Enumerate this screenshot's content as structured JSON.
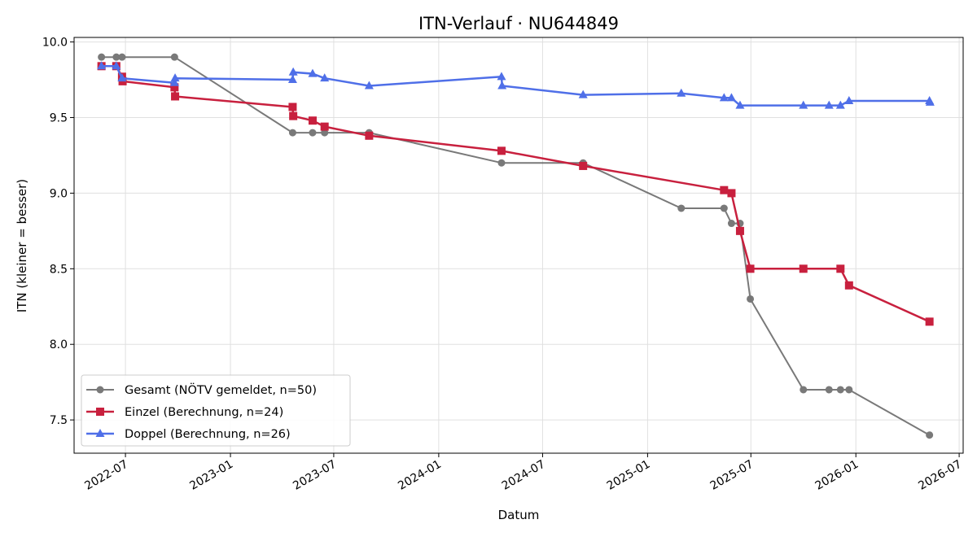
{
  "chart_data": {
    "type": "line",
    "title": "ITN-Verlauf · NU644849",
    "xlabel": "Datum",
    "ylabel": "ITN  (kleiner = besser)",
    "x_range": [
      "2022-04-02",
      "2026-07-08"
    ],
    "ylim": [
      7.28,
      10.03
    ],
    "x_ticks": [
      "2022-07-01",
      "2023-01-01",
      "2023-07-01",
      "2024-01-01",
      "2024-07-01",
      "2025-01-01",
      "2025-07-01",
      "2026-01-01",
      "2026-07-01"
    ],
    "x_tick_labels": [
      "2022-07",
      "2023-01",
      "2023-07",
      "2024-01",
      "2024-07",
      "2025-01",
      "2025-07",
      "2026-01",
      "2026-07"
    ],
    "y_ticks": [
      7.5,
      8.0,
      8.5,
      9.0,
      9.5,
      10.0
    ],
    "y_tick_labels": [
      "7.5",
      "8.0",
      "8.5",
      "9.0",
      "9.5",
      "10.0"
    ],
    "grid": true,
    "legend_position": "lower-left",
    "series": [
      {
        "name": "Gesamt (NÖTV gemeldet, n=50)",
        "color": "#4d4d4d",
        "marker": "circle",
        "points": [
          [
            "2022-05-20",
            9.9
          ],
          [
            "2022-06-15",
            9.9
          ],
          [
            "2022-06-25",
            9.9
          ],
          [
            "2022-09-25",
            9.9
          ],
          [
            "2023-04-20",
            9.4
          ],
          [
            "2023-05-25",
            9.4
          ],
          [
            "2023-06-15",
            9.4
          ],
          [
            "2023-09-01",
            9.4
          ],
          [
            "2024-04-20",
            9.2
          ],
          [
            "2024-09-10",
            9.2
          ],
          [
            "2025-03-01",
            8.9
          ],
          [
            "2025-05-15",
            8.9
          ],
          [
            "2025-05-28",
            8.8
          ],
          [
            "2025-06-12",
            8.8
          ],
          [
            "2025-06-30",
            8.3
          ],
          [
            "2025-10-01",
            7.7
          ],
          [
            "2025-11-15",
            7.7
          ],
          [
            "2025-12-05",
            7.7
          ],
          [
            "2025-12-20",
            7.7
          ],
          [
            "2026-05-10",
            7.4
          ]
        ]
      },
      {
        "name": "Einzel (Berechnung, n=24)",
        "color": "#c8203e",
        "marker": "square",
        "points": [
          [
            "2022-05-20",
            9.84
          ],
          [
            "2022-06-15",
            9.84
          ],
          [
            "2022-06-25",
            9.77
          ],
          [
            "2022-06-26",
            9.74
          ],
          [
            "2022-09-25",
            9.7
          ],
          [
            "2022-09-26",
            9.64
          ],
          [
            "2023-04-20",
            9.57
          ],
          [
            "2023-04-21",
            9.51
          ],
          [
            "2023-05-25",
            9.48
          ],
          [
            "2023-06-15",
            9.44
          ],
          [
            "2023-09-01",
            9.38
          ],
          [
            "2024-04-20",
            9.28
          ],
          [
            "2024-09-10",
            9.18
          ],
          [
            "2025-05-15",
            9.02
          ],
          [
            "2025-05-28",
            9.0
          ],
          [
            "2025-06-12",
            8.75
          ],
          [
            "2025-06-30",
            8.5
          ],
          [
            "2025-10-01",
            8.5
          ],
          [
            "2025-12-05",
            8.5
          ],
          [
            "2025-12-20",
            8.39
          ],
          [
            "2026-05-10",
            8.15
          ]
        ]
      },
      {
        "name": "Doppel (Berechnung, n=26)",
        "color": "#4f6fe8",
        "marker": "triangle",
        "points": [
          [
            "2022-05-20",
            9.84
          ],
          [
            "2022-06-15",
            9.84
          ],
          [
            "2022-06-25",
            9.76
          ],
          [
            "2022-09-25",
            9.73
          ],
          [
            "2022-09-26",
            9.76
          ],
          [
            "2023-04-20",
            9.75
          ],
          [
            "2023-04-21",
            9.8
          ],
          [
            "2023-05-25",
            9.79
          ],
          [
            "2023-06-15",
            9.76
          ],
          [
            "2023-09-01",
            9.71
          ],
          [
            "2024-04-20",
            9.77
          ],
          [
            "2024-04-21",
            9.71
          ],
          [
            "2024-09-10",
            9.65
          ],
          [
            "2025-03-01",
            9.66
          ],
          [
            "2025-05-15",
            9.63
          ],
          [
            "2025-05-28",
            9.63
          ],
          [
            "2025-06-12",
            9.58
          ],
          [
            "2025-10-01",
            9.58
          ],
          [
            "2025-11-15",
            9.58
          ],
          [
            "2025-12-05",
            9.58
          ],
          [
            "2025-12-20",
            9.61
          ],
          [
            "2026-05-10",
            9.61
          ],
          [
            "2026-05-11",
            9.6
          ]
        ]
      }
    ]
  }
}
